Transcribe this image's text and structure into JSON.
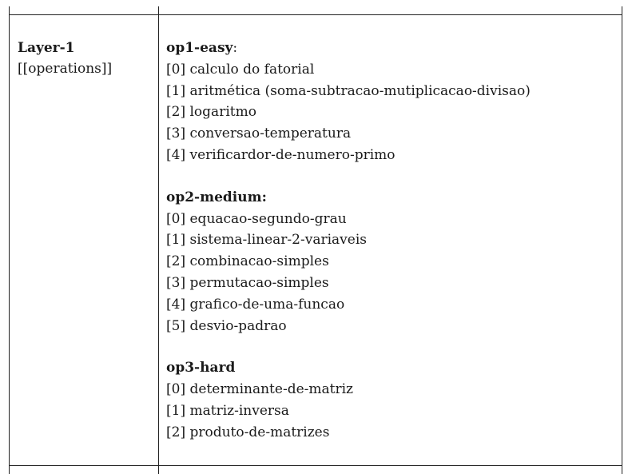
{
  "left": {
    "title": "Layer-1",
    "subtitle": "[[operations]]"
  },
  "groups": [
    {
      "name": "op1-easy",
      "suffix": ":",
      "items": [
        {
          "index": "[0]",
          "label": "calculo do fatorial"
        },
        {
          "index": "[1]",
          "label": "aritmética (soma-subtracao-mutiplicacao-divisao)"
        },
        {
          "index": "[2]",
          "label": "logaritmo"
        },
        {
          "index": "[3]",
          "label": "conversao-temperatura"
        },
        {
          "index": "[4]",
          "label": "verificardor-de-numero-primo"
        }
      ]
    },
    {
      "name": "op2-medium:",
      "suffix": "",
      "items": [
        {
          "index": "[0]",
          "label": "equacao-segundo-grau"
        },
        {
          "index": "[1]",
          "label": "sistema-linear-2-variaveis"
        },
        {
          "index": "[2]",
          "label": "combinacao-simples"
        },
        {
          "index": "[3]",
          "label": "permutacao-simples"
        },
        {
          "index": "[4]",
          "label": "grafico-de-uma-funcao"
        },
        {
          "index": "[5]",
          "label": "desvio-padrao"
        }
      ]
    },
    {
      "name": "op3-hard",
      "suffix": "",
      "items": [
        {
          "index": "[0]",
          "label": "determinante-de-matriz"
        },
        {
          "index": "[1]",
          "label": "matriz-inversa"
        },
        {
          "index": "[2]",
          "label": "produto-de-matrizes"
        }
      ]
    }
  ]
}
